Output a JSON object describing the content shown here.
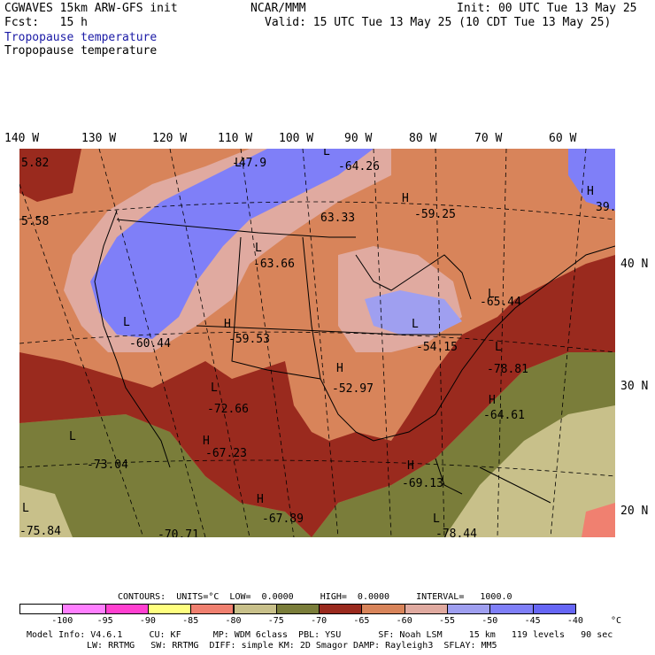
{
  "header": {
    "model": "CGWAVES 15km ARW-GFS init",
    "org": "NCAR/MMM",
    "init": "Init: 00 UTC Tue 13 May 25",
    "fcst": "Fcst:   15 h",
    "valid": "Valid: 15 UTC Tue 13 May 25 (10 CDT Tue 13 May 25)",
    "field1": "Tropopause temperature",
    "field2": "Tropopause temperature"
  },
  "longitudes": [
    "140 W",
    "130 W",
    "120 W",
    "110 W",
    "100 W",
    "90 W",
    "80 W",
    "70 W",
    "60 W"
  ],
  "latitudes": [
    "40 N",
    "30 N",
    "20 N"
  ],
  "map_labels": [
    {
      "kind": "value",
      "text": "5.82"
    },
    {
      "kind": "value",
      "text": "5.58"
    },
    {
      "kind": "low",
      "text": "L"
    },
    {
      "kind": "value",
      "text": "-47.9"
    },
    {
      "kind": "low",
      "text": "L"
    },
    {
      "kind": "value",
      "text": "-64.26"
    },
    {
      "kind": "high",
      "text": "H"
    },
    {
      "kind": "value",
      "text": "-59.25"
    },
    {
      "kind": "high",
      "text": "H"
    },
    {
      "kind": "value",
      "text": "39."
    },
    {
      "kind": "value",
      "text": "63.33"
    },
    {
      "kind": "low",
      "text": "L"
    },
    {
      "kind": "value",
      "text": "-63.66"
    },
    {
      "kind": "low",
      "text": "L"
    },
    {
      "kind": "value",
      "text": "-65.44"
    },
    {
      "kind": "low",
      "text": "L"
    },
    {
      "kind": "value",
      "text": "-60.44"
    },
    {
      "kind": "high",
      "text": "H"
    },
    {
      "kind": "value",
      "text": "-59.53"
    },
    {
      "kind": "low",
      "text": "L"
    },
    {
      "kind": "value",
      "text": "-54.15"
    },
    {
      "kind": "high",
      "text": "H"
    },
    {
      "kind": "value",
      "text": "-52.97"
    },
    {
      "kind": "low",
      "text": "L"
    },
    {
      "kind": "value",
      "text": "-78.81"
    },
    {
      "kind": "low",
      "text": "L"
    },
    {
      "kind": "value",
      "text": "-72.66"
    },
    {
      "kind": "high",
      "text": "H"
    },
    {
      "kind": "value",
      "text": "-64.61"
    },
    {
      "kind": "high",
      "text": "H"
    },
    {
      "kind": "value",
      "text": "-67.23"
    },
    {
      "kind": "low",
      "text": "L"
    },
    {
      "kind": "value",
      "text": "-73.04"
    },
    {
      "kind": "high",
      "text": "H"
    },
    {
      "kind": "value",
      "text": "-69.13"
    },
    {
      "kind": "high",
      "text": "H"
    },
    {
      "kind": "value",
      "text": "-67.89"
    },
    {
      "kind": "low",
      "text": "L"
    },
    {
      "kind": "value",
      "text": "-75.84"
    },
    {
      "kind": "value",
      "text": "-70.71"
    },
    {
      "kind": "low",
      "text": "L"
    },
    {
      "kind": "value",
      "text": "-78.44"
    }
  ],
  "contours": {
    "line": "CONTOURS:  UNITS=°C  LOW=  0.0000     HIGH=  0.0000     INTERVAL=   1000.0"
  },
  "legend": {
    "colors": [
      "#ffffff",
      "#ff7fff",
      "#ff40d0",
      "#ffff7f",
      "#f08070",
      "#c8c08a",
      "#7a7d3a",
      "#9a2a1e",
      "#d8845a",
      "#e0aaa0",
      "#9f9ff0",
      "#7f7ff8",
      "#6666f5"
    ],
    "ticks": [
      "-100",
      "-95",
      "-90",
      "-85",
      "-80",
      "-75",
      "-70",
      "-65",
      "-60",
      "-55",
      "-50",
      "-45",
      "-40"
    ],
    "unit": "°C"
  },
  "footer": {
    "line1": "Model Info: V4.6.1     CU: KF      MP: WDM 6class  PBL: YSU       SF: Noah LSM     15 km   119 levels   90 sec",
    "line2": "LW: RRTMG   SW: RRTMG  DIFF: simple KM: 2D Smagor DAMP: Rayleigh3  SFLAY: MM5"
  }
}
